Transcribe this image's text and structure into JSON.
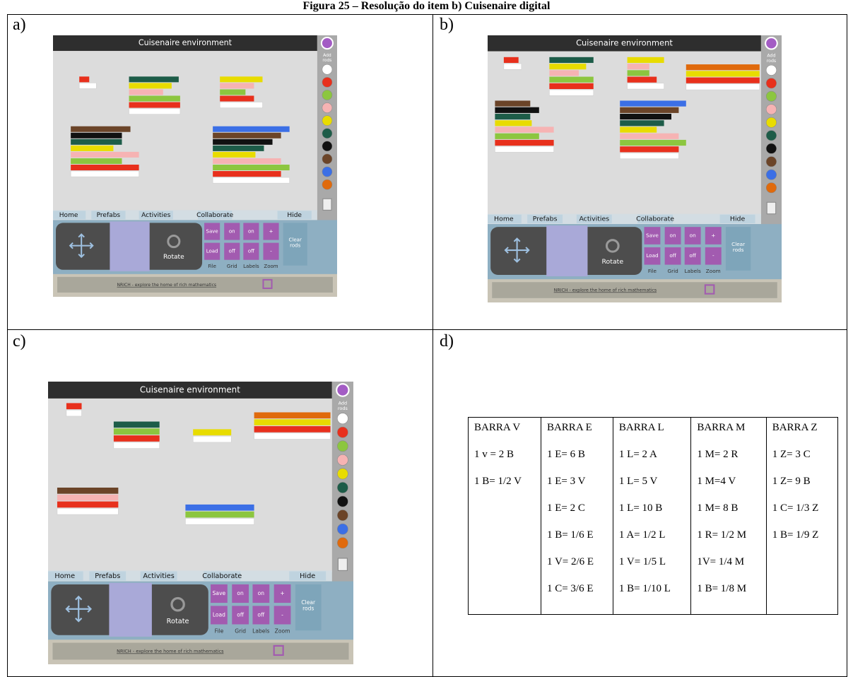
{
  "title": "Figura 25 – Resolução do item b) Cuisenaire digital",
  "panels": [
    {
      "label": "a)"
    },
    {
      "label": "b)"
    },
    {
      "label": "c)"
    },
    {
      "label": "d)"
    }
  ],
  "app": {
    "title": "Cuisenaire environment",
    "add_rods": [
      "Add",
      "rods"
    ],
    "menu": [
      "Home",
      "Prefabs",
      "Activities",
      "Collaborate",
      "Hide"
    ],
    "rotate": "Rotate",
    "save": "Save",
    "load": "Load",
    "file": "File",
    "on": "on",
    "off": "off",
    "grid": "Grid",
    "labels": "Labels",
    "plus": "+",
    "minus": "-",
    "zoom": "Zoom",
    "clear_rods": [
      "Clear",
      "rods"
    ],
    "footer": "NRICH - explore the home of rich mathematics"
  },
  "table": {
    "headers": [
      "BARRA V",
      "BARRA E",
      "BARRA L",
      "BARRA M",
      "BARRA Z"
    ],
    "columns": [
      [
        "1 v = 2 B",
        "1 B= 1/2 V"
      ],
      [
        "1 E= 6 B",
        "1 E= 3 V",
        "1 E= 2 C",
        "1 B= 1/6 E",
        "1 V= 2/6 E",
        "1 C= 3/6 E"
      ],
      [
        "1 L= 2 A",
        "1 L= 5 V",
        "1 L= 10 B",
        "1 A= 1/2 L",
        "1 V= 1/5 L",
        "1 B= 1/10 L"
      ],
      [
        "1 M= 2 R",
        "1 M=4 V",
        "1 M= 8 B",
        "1 R= 1/2 M",
        "1V= 1/4 M",
        "1 B= 1/8 M"
      ],
      [
        "1 Z= 3 C",
        "1 Z= 9 B",
        "1 C= 1/3 Z",
        "1 B= 1/9 Z"
      ]
    ]
  }
}
